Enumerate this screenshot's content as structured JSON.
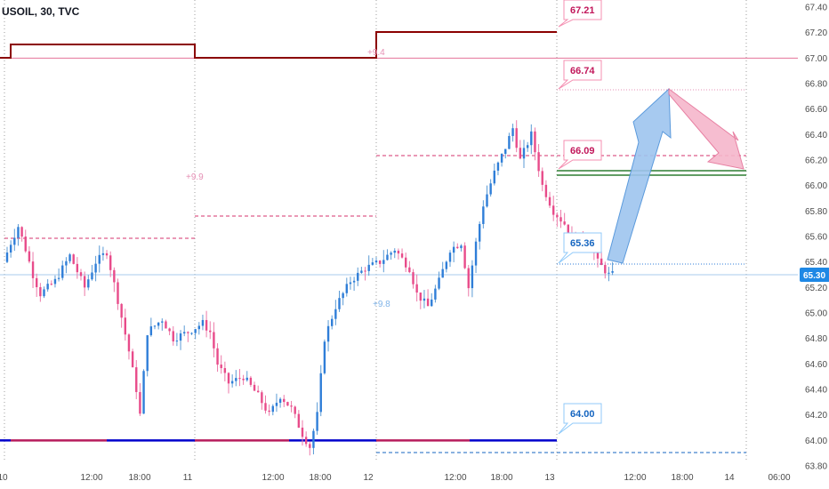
{
  "header": {
    "title": "USOIL, 30, TVC"
  },
  "price_badge": {
    "value": "65.30",
    "color": "#1e88e5"
  },
  "annotations": {
    "callouts": [
      {
        "text": "67.21",
        "color": "#c2185b",
        "border": "#f48fb1"
      },
      {
        "text": "66.74",
        "color": "#c2185b",
        "border": "#f48fb1"
      },
      {
        "text": "66.09",
        "color": "#c2185b",
        "border": "#f48fb1"
      },
      {
        "text": "65.36",
        "color": "#1565c0",
        "border": "#90caf9"
      },
      {
        "text": "64.00",
        "color": "#1565c0",
        "border": "#90caf9"
      }
    ],
    "faint_labels": [
      {
        "text": "+9.9",
        "color": "#e58fb4"
      },
      {
        "text": "+9.8",
        "color": "#7fb3e8"
      },
      {
        "text": "+9.4",
        "color": "#e58fb4"
      }
    ]
  },
  "chart_data": {
    "type": "candlestick",
    "title": "USOIL, 30, TVC",
    "ylim": [
      63.77,
      67.48
    ],
    "y_ticks": [
      "67.40",
      "67.20",
      "67.00",
      "66.80",
      "66.60",
      "66.40",
      "66.20",
      "66.00",
      "65.80",
      "65.60",
      "65.40",
      "65.20",
      "65.00",
      "64.80",
      "64.60",
      "64.40",
      "64.20",
      "64.00",
      "63.80"
    ],
    "x_ticks": [
      "10",
      "12:00",
      "18:00",
      "11",
      "12:00",
      "18:00",
      "12",
      "12:00",
      "18:00",
      "13",
      "12:00",
      "18:00",
      "14",
      "06:00"
    ],
    "day_separators": [
      "10",
      "11",
      "12",
      "13",
      "14"
    ],
    "last_price": 65.3,
    "levels": {
      "pivot_67": 67.0,
      "support_64": 64.0,
      "target_67_21": 67.21,
      "target_66_74": 66.74,
      "level_66_09": 66.09,
      "level_65_36": 65.36,
      "green_band": [
        66.07,
        66.1
      ]
    },
    "colors": {
      "up": "#2f7ed8",
      "down": "#e84b8a",
      "up_wick": "#5b9bd5",
      "down_wick": "#ec7aa8",
      "dark_red": "#8b0000",
      "navy": "#0000cc",
      "crimson": "#b71c5c"
    },
    "path_anchors": [
      {
        "t": 0,
        "p": 65.4
      },
      {
        "t": 2,
        "p": 65.55
      },
      {
        "t": 4,
        "p": 65.68
      },
      {
        "t": 6,
        "p": 65.5
      },
      {
        "t": 8,
        "p": 65.3
      },
      {
        "t": 10,
        "p": 65.15
      },
      {
        "t": 14,
        "p": 65.25
      },
      {
        "t": 18,
        "p": 65.45
      },
      {
        "t": 22,
        "p": 65.2
      },
      {
        "t": 25,
        "p": 65.4
      },
      {
        "t": 28,
        "p": 65.48
      },
      {
        "t": 31,
        "p": 65.1
      },
      {
        "t": 34,
        "p": 64.7
      },
      {
        "t": 36,
        "p": 64.4
      },
      {
        "t": 37,
        "p": 64.2
      },
      {
        "t": 39,
        "p": 64.85
      },
      {
        "t": 43,
        "p": 64.95
      },
      {
        "t": 46,
        "p": 64.8
      },
      {
        "t": 50,
        "p": 64.85
      },
      {
        "t": 54,
        "p": 64.92
      },
      {
        "t": 56,
        "p": 64.85
      },
      {
        "t": 58,
        "p": 64.6
      },
      {
        "t": 61,
        "p": 64.45
      },
      {
        "t": 65,
        "p": 64.5
      },
      {
        "t": 69,
        "p": 64.35
      },
      {
        "t": 72,
        "p": 64.2
      },
      {
        "t": 75,
        "p": 64.35
      },
      {
        "t": 78,
        "p": 64.25
      },
      {
        "t": 81,
        "p": 64.05
      },
      {
        "t": 83,
        "p": 63.95
      },
      {
        "t": 85,
        "p": 64.2
      },
      {
        "t": 87,
        "p": 64.8
      },
      {
        "t": 90,
        "p": 65.05
      },
      {
        "t": 94,
        "p": 65.25
      },
      {
        "t": 98,
        "p": 65.35
      },
      {
        "t": 102,
        "p": 65.4
      },
      {
        "t": 106,
        "p": 65.5
      },
      {
        "t": 110,
        "p": 65.35
      },
      {
        "t": 112,
        "p": 65.15
      },
      {
        "t": 115,
        "p": 65.05
      },
      {
        "t": 118,
        "p": 65.25
      },
      {
        "t": 121,
        "p": 65.5
      },
      {
        "t": 124,
        "p": 65.55
      },
      {
        "t": 126,
        "p": 65.2
      },
      {
        "t": 128,
        "p": 65.55
      },
      {
        "t": 130,
        "p": 65.85
      },
      {
        "t": 133,
        "p": 66.1
      },
      {
        "t": 136,
        "p": 66.3
      },
      {
        "t": 138,
        "p": 66.45
      },
      {
        "t": 140,
        "p": 66.2
      },
      {
        "t": 143,
        "p": 66.4
      },
      {
        "t": 146,
        "p": 66.0
      },
      {
        "t": 149,
        "p": 65.8
      },
      {
        "t": 152,
        "p": 65.7
      },
      {
        "t": 155,
        "p": 65.55
      },
      {
        "t": 158,
        "p": 65.6
      },
      {
        "t": 161,
        "p": 65.4
      },
      {
        "t": 164,
        "p": 65.3
      }
    ]
  }
}
